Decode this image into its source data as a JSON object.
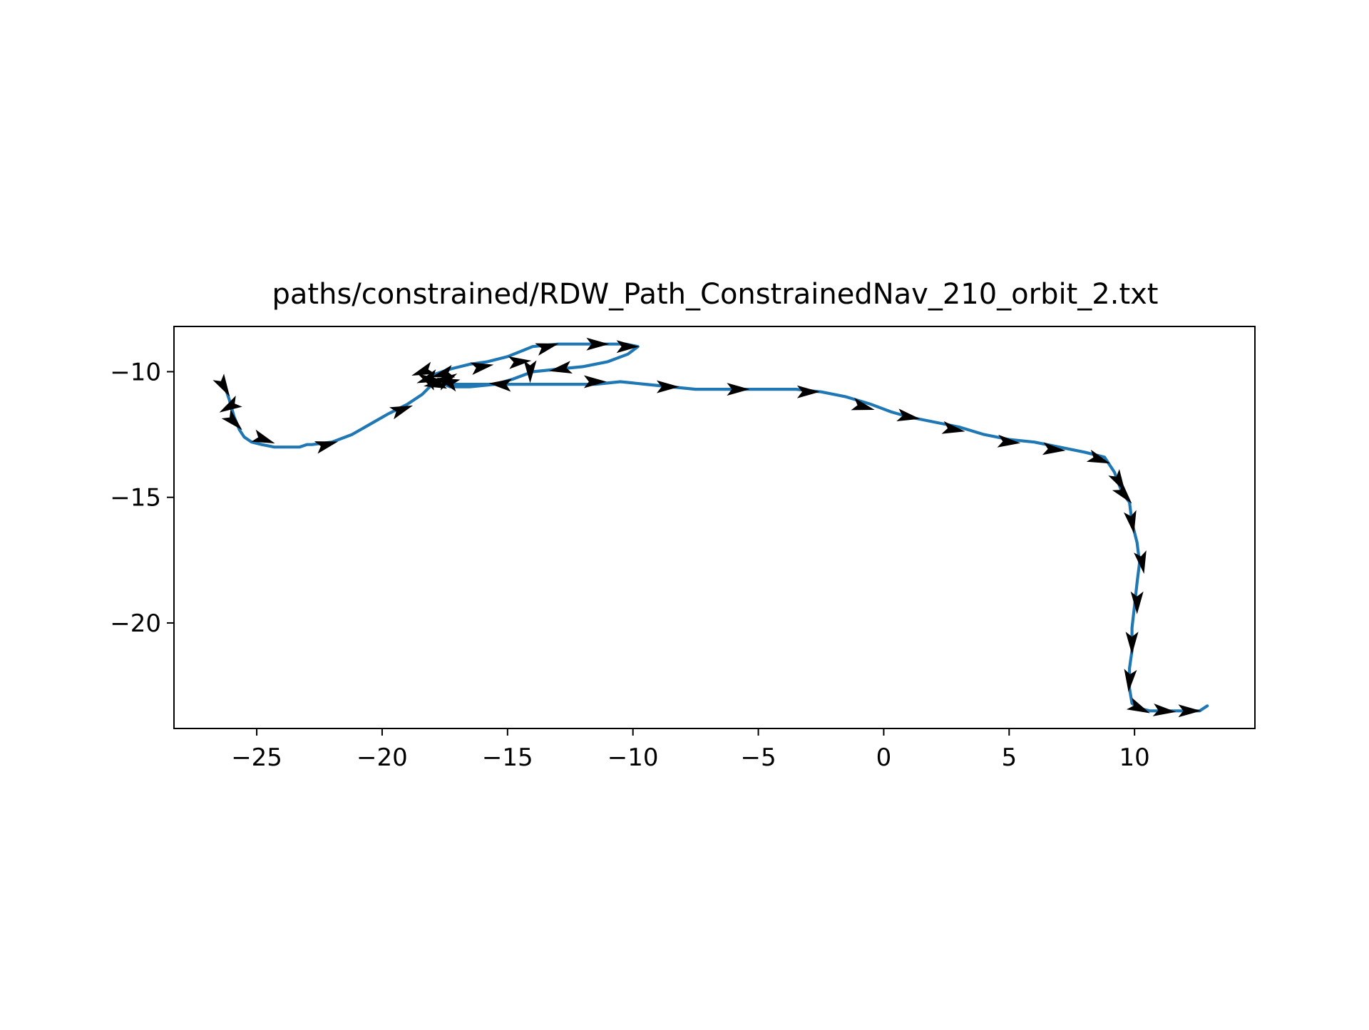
{
  "chart_data": {
    "type": "line",
    "title": "paths/constrained/RDW_Path_ConstrainedNav_210_orbit_2.txt",
    "xlabel": "",
    "ylabel": "",
    "xlim": [
      -28.3,
      14.8
    ],
    "ylim": [
      -24.2,
      -8.2
    ],
    "x_ticks": [
      -25,
      -20,
      -15,
      -10,
      -5,
      0,
      5,
      10
    ],
    "x_tick_labels": [
      "−25",
      "−20",
      "−15",
      "−10",
      "−5",
      "0",
      "5",
      "10"
    ],
    "y_ticks": [
      -10,
      -15,
      -20
    ],
    "y_tick_labels": [
      "−10",
      "−15",
      "−20"
    ],
    "grid": false,
    "legend": "none",
    "colors": {
      "path": "#1f77b4",
      "arrows": "#000000"
    },
    "series": [
      {
        "x": [
          -26.3,
          -26.1,
          -25.9,
          -25.7,
          -25.5,
          -25.2,
          -24.8,
          -24.3,
          -23.8,
          -23.3,
          -23.0,
          -22.8,
          -22.0,
          -21.2,
          -20.5,
          -19.8,
          -19.0,
          -18.4,
          -18.1,
          -18.1,
          -17.9,
          -17.3,
          -16.5,
          -15.8,
          -15.0,
          -14.5,
          -14.0,
          -13.0,
          -12.0,
          -11.0,
          -10.3,
          -9.8,
          -10.2,
          -11.0,
          -12.0,
          -13.0,
          -14.0,
          -14.8,
          -15.5,
          -16.5,
          -17.3,
          -18.0,
          -17.8,
          -17.2,
          -16.5,
          -15.5,
          -14.5,
          -13.5,
          -12.5,
          -11.5,
          -10.5,
          -9.5,
          -8.5,
          -7.5,
          -6.5,
          -5.5,
          -4.5,
          -3.5,
          -2.5,
          -1.5,
          -0.5,
          0.3,
          1.0,
          2.0,
          3.0,
          4.0,
          5.0,
          6.0,
          7.0,
          8.0,
          8.8,
          9.2,
          9.5,
          9.8,
          9.9,
          10.1,
          10.2,
          10.1,
          10.0,
          9.9,
          9.9,
          9.8,
          9.8,
          9.9,
          10.2,
          10.6,
          11.2,
          12.0,
          12.6,
          12.9
        ],
        "y": [
          -10.5,
          -11.1,
          -11.8,
          -12.3,
          -12.6,
          -12.8,
          -12.9,
          -13.0,
          -13.0,
          -13.0,
          -12.9,
          -12.9,
          -12.8,
          -12.5,
          -12.1,
          -11.7,
          -11.3,
          -10.9,
          -10.6,
          -10.3,
          -10.1,
          -9.9,
          -9.7,
          -9.6,
          -9.4,
          -9.2,
          -9.0,
          -8.9,
          -8.9,
          -8.9,
          -8.9,
          -9.0,
          -9.3,
          -9.6,
          -9.8,
          -9.9,
          -10.0,
          -10.3,
          -10.5,
          -10.6,
          -10.6,
          -10.3,
          -10.4,
          -10.5,
          -10.5,
          -10.5,
          -10.5,
          -10.5,
          -10.5,
          -10.5,
          -10.4,
          -10.5,
          -10.6,
          -10.7,
          -10.7,
          -10.7,
          -10.7,
          -10.7,
          -10.8,
          -11.0,
          -11.3,
          -11.6,
          -11.8,
          -12.0,
          -12.2,
          -12.5,
          -12.7,
          -12.8,
          -13.0,
          -13.2,
          -13.4,
          -14.0,
          -14.8,
          -15.2,
          -16.0,
          -16.8,
          -17.6,
          -18.4,
          -19.3,
          -20.2,
          -21.1,
          -21.8,
          -22.6,
          -23.2,
          -23.4,
          -23.5,
          -23.5,
          -23.5,
          -23.5,
          -23.3
        ]
      }
    ],
    "arrows": {
      "x": [
        -26.3,
        -26.1,
        -25.9,
        -24.7,
        -22.2,
        -19.2,
        -18.4,
        -18.2,
        -17.4,
        -16.0,
        -14.5,
        -13.4,
        -11.4,
        -10.2,
        -14.1,
        -12.9,
        -15.3,
        -17.9,
        -18.2,
        -17.6,
        -17.4,
        -11.5,
        -8.6,
        -5.8,
        -3.0,
        -0.8,
        1.0,
        2.8,
        5.0,
        6.8,
        8.6,
        9.4,
        9.6,
        9.9,
        10.3,
        10.1,
        9.9,
        9.8,
        10.2,
        11.2,
        12.2
      ],
      "y": [
        -10.6,
        -11.4,
        -12.0,
        -12.7,
        -12.9,
        -11.5,
        -10.0,
        -10.3,
        -10.4,
        -9.8,
        -9.6,
        -9.0,
        -8.9,
        -9.0,
        -10.0,
        -9.9,
        -10.5,
        -10.5,
        -10.3,
        -10.1,
        -10.3,
        -10.4,
        -10.6,
        -10.7,
        -10.8,
        -11.4,
        -11.8,
        -12.3,
        -12.8,
        -13.1,
        -13.5,
        -14.4,
        -14.9,
        -16.0,
        -17.6,
        -19.2,
        -20.8,
        -22.3,
        -23.4,
        -23.5,
        -23.5
      ],
      "angle_deg": [
        -60,
        210,
        -45,
        -20,
        15,
        20,
        200,
        200,
        160,
        10,
        5,
        15,
        0,
        0,
        270,
        190,
        175,
        190,
        150,
        195,
        30,
        0,
        0,
        0,
        0,
        -15,
        -10,
        -10,
        -5,
        -5,
        -20,
        -60,
        -50,
        -80,
        -80,
        -90,
        -90,
        -95,
        -25,
        -5,
        0
      ]
    }
  }
}
